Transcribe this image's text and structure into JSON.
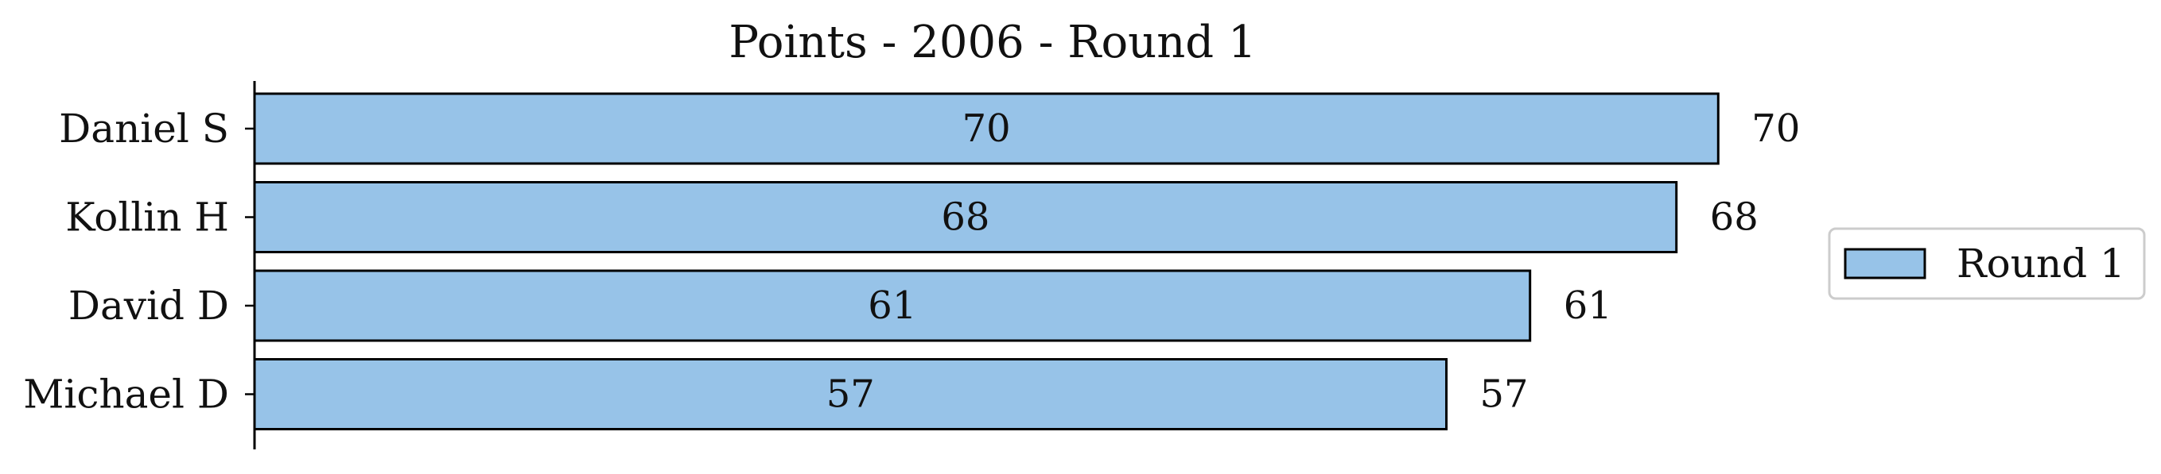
{
  "chart_data": {
    "type": "bar",
    "orientation": "horizontal",
    "title": "Points - 2006 - Round 1",
    "xlabel": "",
    "ylabel": "",
    "categories": [
      "Daniel S",
      "Kollin H",
      "David D",
      "Michael D"
    ],
    "series": [
      {
        "name": "Round 1",
        "values": [
          70,
          68,
          61,
          57
        ],
        "color": "#97c3e8"
      }
    ],
    "xlim": [
      0,
      72
    ],
    "grid": false,
    "legend_position": "right",
    "data_labels": "inside-center and outside-end",
    "edge_color": "#000000"
  }
}
